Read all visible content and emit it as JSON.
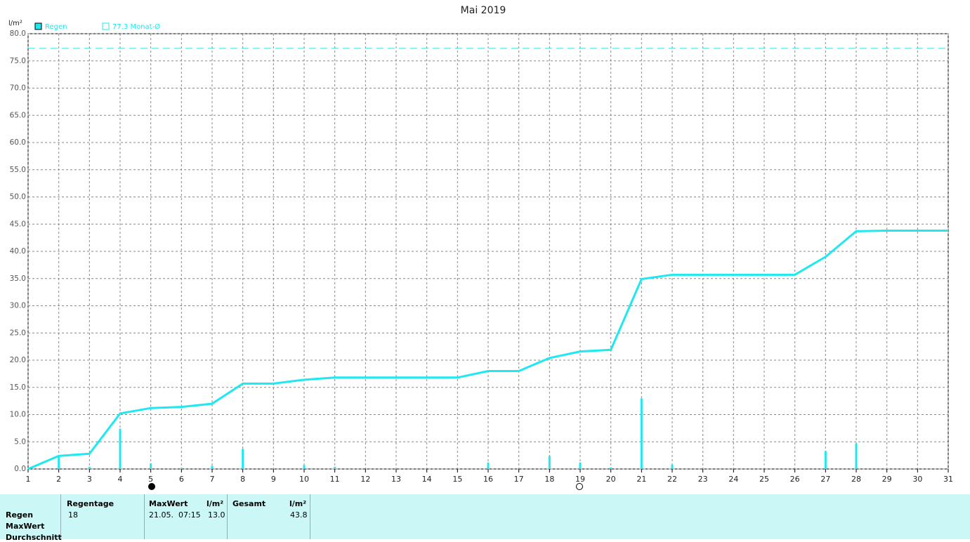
{
  "chart_data": {
    "type": "line",
    "title": "Mai 2019",
    "y_label": "l/m²",
    "x": [
      1,
      2,
      3,
      4,
      5,
      6,
      7,
      8,
      9,
      10,
      11,
      12,
      13,
      14,
      15,
      16,
      17,
      18,
      19,
      20,
      21,
      22,
      23,
      24,
      25,
      26,
      27,
      28,
      29,
      30,
      31
    ],
    "xlim": [
      1,
      31
    ],
    "xticks": [
      1,
      2,
      3,
      4,
      5,
      6,
      7,
      8,
      9,
      10,
      11,
      12,
      13,
      14,
      15,
      16,
      17,
      18,
      19,
      20,
      21,
      22,
      23,
      24,
      25,
      26,
      27,
      28,
      29,
      30,
      31
    ],
    "ylim": [
      0,
      80
    ],
    "yticks": [
      {
        "value": 0,
        "label": "0.0"
      },
      {
        "value": 5,
        "label": "5.0"
      },
      {
        "value": 10,
        "label": "10.0"
      },
      {
        "value": 15,
        "label": "15.0"
      },
      {
        "value": 20,
        "label": "20.0"
      },
      {
        "value": 25,
        "label": "25.0"
      },
      {
        "value": 30,
        "label": "30.0"
      },
      {
        "value": 35,
        "label": "35.0"
      },
      {
        "value": 40,
        "label": "40.0"
      },
      {
        "value": 45,
        "label": "45.0"
      },
      {
        "value": 50,
        "label": "50.0"
      },
      {
        "value": 55,
        "label": "55.0"
      },
      {
        "value": 60,
        "label": "60.0"
      },
      {
        "value": 65,
        "label": "65.0"
      },
      {
        "value": 70,
        "label": "70.0"
      },
      {
        "value": 75,
        "label": "75.0"
      },
      {
        "value": 80,
        "label": "80.0"
      }
    ],
    "grid": true,
    "series": [
      {
        "name": "Regen",
        "type": "line",
        "color": "#1ee8f0",
        "values": [
          0,
          2.4,
          2.8,
          10.2,
          11.2,
          11.4,
          12.0,
          15.7,
          15.7,
          16.4,
          16.8,
          16.8,
          16.8,
          16.8,
          16.8,
          18.0,
          18.0,
          20.4,
          21.6,
          21.9,
          34.9,
          35.7,
          35.7,
          35.7,
          35.7,
          35.7,
          39.0,
          43.7,
          43.8,
          43.8,
          43.8
        ]
      },
      {
        "type": "bar",
        "color": "#1ee8f0",
        "values": [
          0,
          2.4,
          0.4,
          7.4,
          1.0,
          0.2,
          0.6,
          3.7,
          0,
          0.7,
          0.4,
          0,
          0,
          0,
          0,
          1.2,
          0,
          2.4,
          1.2,
          0.3,
          13.0,
          0.8,
          0,
          0,
          0,
          0,
          3.3,
          4.7,
          0.1,
          0,
          0
        ]
      }
    ],
    "reference_line": {
      "value": 77.3,
      "label": "77.3 Monat-Ø",
      "color": "#1ee8f0"
    }
  },
  "table": {
    "headers": [
      "Regentage",
      "MaxWert",
      "l/m²",
      "Gesamt",
      "l/m²"
    ],
    "row_labels": [
      "Regen",
      "MaxWert",
      "Durchschnitt"
    ],
    "rows": [
      [
        "18",
        "21.05.  07:15",
        "13.0",
        "43.8"
      ]
    ]
  }
}
